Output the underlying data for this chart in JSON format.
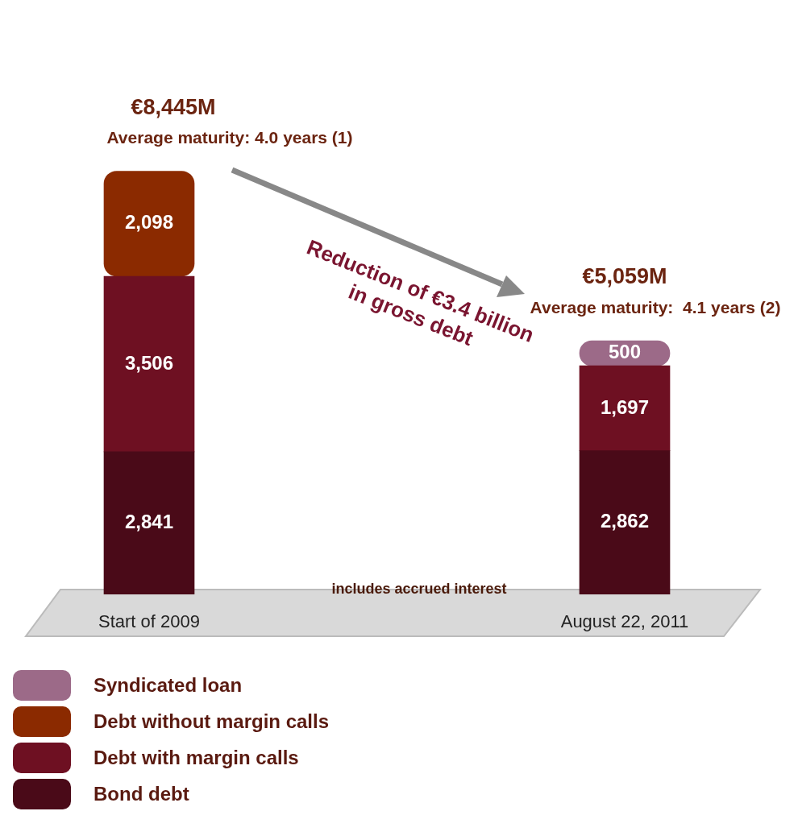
{
  "chart_data": {
    "type": "bar",
    "stacked": true,
    "categories": [
      "Start of 2009",
      "August 22, 2011"
    ],
    "series": [
      {
        "name": "Bond debt",
        "color": "#4a0a18",
        "values": [
          2841,
          2862
        ],
        "value_labels": [
          "2,841",
          "2,862"
        ]
      },
      {
        "name": "Debt with margin calls",
        "color": "#6e1022",
        "values": [
          3506,
          1697
        ],
        "value_labels": [
          "3,506",
          "1,697"
        ]
      },
      {
        "name": "Debt without margin calls",
        "color": "#8b2a00",
        "values": [
          2098,
          null
        ],
        "value_labels": [
          "2,098",
          null
        ]
      },
      {
        "name": "Syndicated loan",
        "color": "#9c6a88",
        "values": [
          null,
          500
        ],
        "value_labels": [
          null,
          "500"
        ]
      }
    ],
    "data_labels": true,
    "totals": [
      "€8,445M",
      "€5,059M"
    ],
    "annotations": [
      "Average maturity: 4.0 years (1)",
      "Average maturity:  4.1 years (2)",
      "Reduction of €3.4 billion in gross debt",
      "includes accrued interest"
    ],
    "legend": "bottom left",
    "grid": false
  }
}
